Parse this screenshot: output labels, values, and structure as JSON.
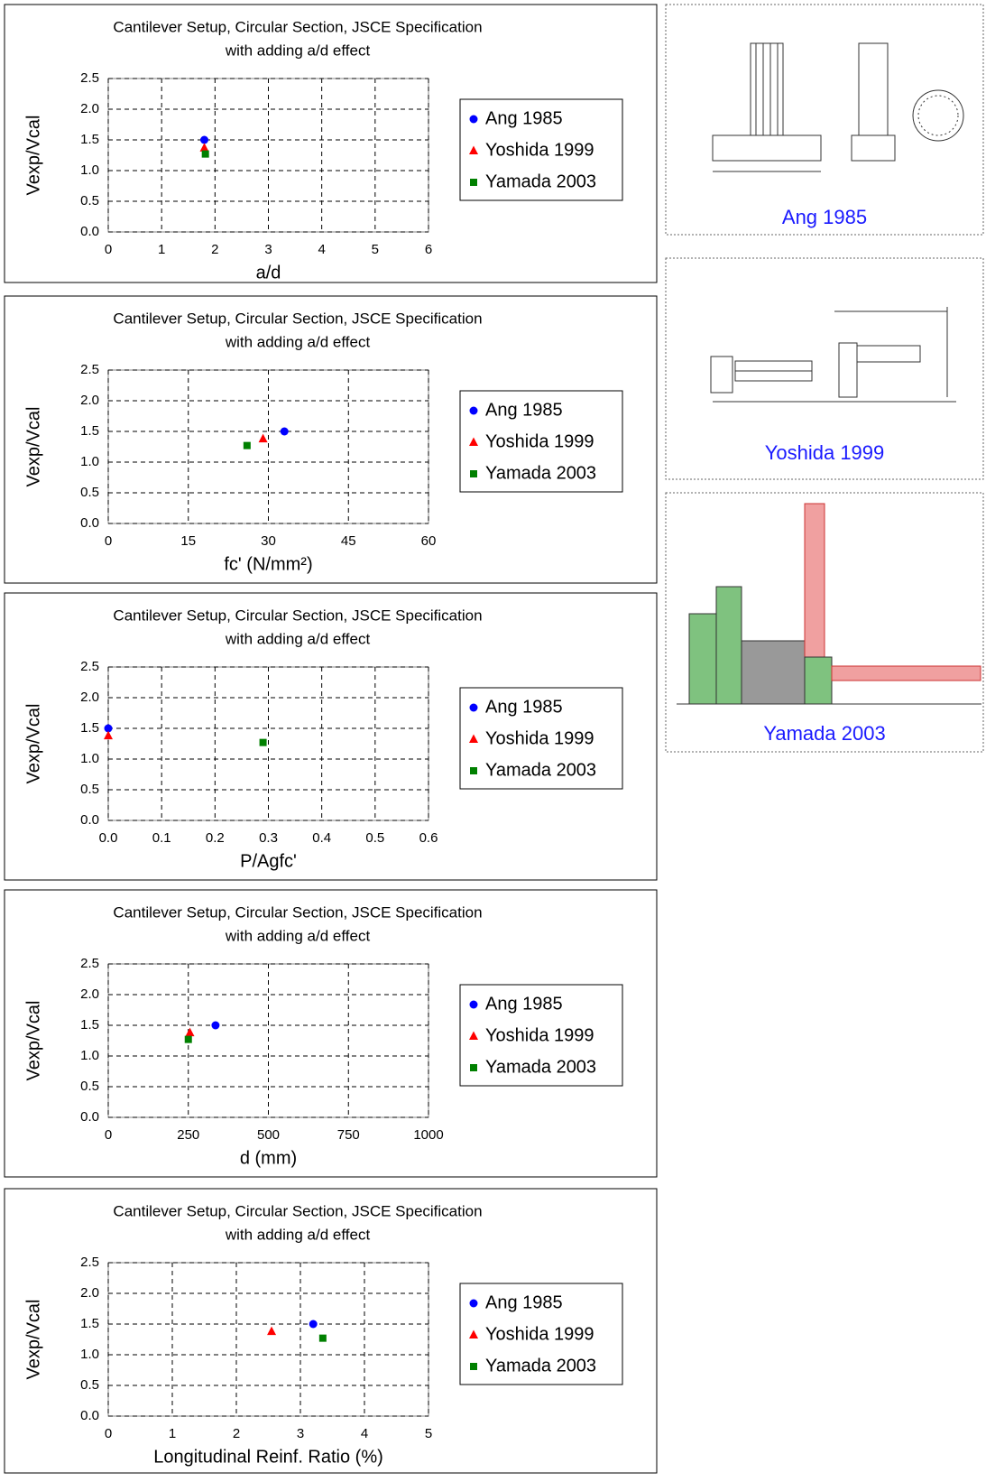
{
  "chart_data": [
    {
      "type": "scatter",
      "title": "Cantilever Setup, Circular Section, JSCE Specification",
      "subtitle": "with adding a/d effect",
      "x_label": "a/d",
      "y_label": "Vexp/Vcal",
      "xlim": [
        0,
        6
      ],
      "xticks": [
        0,
        1,
        2,
        3,
        4,
        5,
        6
      ],
      "ylim": [
        0,
        2.5
      ],
      "yticks": [
        {
          "value": 0,
          "label": "0.0"
        },
        0.5,
        {
          "value": 1,
          "label": "1.0"
        },
        1.5,
        {
          "value": 2,
          "label": "2.0"
        },
        2.5
      ],
      "grid": true,
      "legend": "right",
      "series": [
        {
          "name": "Ang 1985",
          "color": "#0000ff",
          "marker": "circle",
          "x": [
            1.8
          ],
          "values": [
            1.5
          ]
        },
        {
          "name": "Yoshida 1999",
          "color": "#ff0000",
          "marker": "triangle",
          "x": [
            1.8
          ],
          "values": [
            1.37
          ]
        },
        {
          "name": "Yamada 2003",
          "color": "#008000",
          "marker": "square",
          "x": [
            1.82
          ],
          "values": [
            1.27
          ]
        }
      ]
    },
    {
      "type": "scatter",
      "title": "Cantilever Setup, Circular Section, JSCE Specification",
      "subtitle": "with adding a/d effect",
      "x_label": "fc' (N/mm²)",
      "y_label": "Vexp/Vcal",
      "xlim": [
        0,
        60
      ],
      "xticks": [
        0,
        15,
        30,
        45,
        60
      ],
      "ylim": [
        0,
        2.5
      ],
      "yticks": [
        {
          "value": 0,
          "label": "0.0"
        },
        0.5,
        {
          "value": 1,
          "label": "1.0"
        },
        1.5,
        {
          "value": 2,
          "label": "2.0"
        },
        2.5
      ],
      "grid": true,
      "legend": "right",
      "series": [
        {
          "name": "Ang 1985",
          "color": "#0000ff",
          "marker": "circle",
          "x": [
            33
          ],
          "values": [
            1.5
          ]
        },
        {
          "name": "Yoshida 1999",
          "color": "#ff0000",
          "marker": "triangle",
          "x": [
            29
          ],
          "values": [
            1.38
          ]
        },
        {
          "name": "Yamada 2003",
          "color": "#008000",
          "marker": "square",
          "x": [
            26
          ],
          "values": [
            1.27
          ]
        }
      ]
    },
    {
      "type": "scatter",
      "title": "Cantilever Setup, Circular Section, JSCE Specification",
      "subtitle": "with adding a/d effect",
      "x_label": "P/Agfc'",
      "y_label": "Vexp/Vcal",
      "xlim": [
        0,
        0.6
      ],
      "xticks": [
        {
          "value": 0,
          "label": "0.0"
        },
        0.1,
        0.2,
        0.3,
        0.4,
        0.5,
        0.6
      ],
      "ylim": [
        0,
        2.5
      ],
      "yticks": [
        {
          "value": 0,
          "label": "0.0"
        },
        0.5,
        {
          "value": 1,
          "label": "1.0"
        },
        1.5,
        {
          "value": 2,
          "label": "2.0"
        },
        2.5
      ],
      "grid": true,
      "legend": "right",
      "series": [
        {
          "name": "Ang 1985",
          "color": "#0000ff",
          "marker": "circle",
          "x": [
            0.0
          ],
          "values": [
            1.5
          ]
        },
        {
          "name": "Yoshida 1999",
          "color": "#ff0000",
          "marker": "triangle",
          "x": [
            0.0
          ],
          "values": [
            1.38
          ]
        },
        {
          "name": "Yamada 2003",
          "color": "#008000",
          "marker": "square",
          "x": [
            0.29
          ],
          "values": [
            1.27
          ]
        }
      ]
    },
    {
      "type": "scatter",
      "title": "Cantilever Setup, Circular Section, JSCE Specification",
      "subtitle": "with adding a/d effect",
      "x_label": "d (mm)",
      "y_label": "Vexp/Vcal",
      "xlim": [
        0,
        1000
      ],
      "xticks": [
        0,
        250,
        500,
        750,
        1000
      ],
      "ylim": [
        0,
        2.5
      ],
      "yticks": [
        {
          "value": 0,
          "label": "0.0"
        },
        0.5,
        {
          "value": 1,
          "label": "1.0"
        },
        1.5,
        {
          "value": 2,
          "label": "2.0"
        },
        2.5
      ],
      "grid": true,
      "legend": "right",
      "series": [
        {
          "name": "Ang 1985",
          "color": "#0000ff",
          "marker": "circle",
          "x": [
            335
          ],
          "values": [
            1.5
          ]
        },
        {
          "name": "Yoshida 1999",
          "color": "#ff0000",
          "marker": "triangle",
          "x": [
            255
          ],
          "values": [
            1.38
          ]
        },
        {
          "name": "Yamada 2003",
          "color": "#008000",
          "marker": "square",
          "x": [
            250
          ],
          "values": [
            1.27
          ]
        }
      ]
    },
    {
      "type": "scatter",
      "title": "Cantilever Setup, Circular Section, JSCE Specification",
      "subtitle": "with adding a/d effect",
      "x_label": "Longitudinal Reinf. Ratio (%)",
      "y_label": "Vexp/Vcal",
      "xlim": [
        0,
        5
      ],
      "xticks": [
        0,
        1,
        2,
        3,
        4,
        5
      ],
      "ylim": [
        0,
        2.5
      ],
      "yticks": [
        {
          "value": 0,
          "label": "0.0"
        },
        0.5,
        {
          "value": 1,
          "label": "1.0"
        },
        1.5,
        {
          "value": 2,
          "label": "2.0"
        },
        2.5
      ],
      "grid": true,
      "legend": "right",
      "series": [
        {
          "name": "Ang 1985",
          "color": "#0000ff",
          "marker": "circle",
          "x": [
            3.2
          ],
          "values": [
            1.5
          ]
        },
        {
          "name": "Yoshida 1999",
          "color": "#ff0000",
          "marker": "triangle",
          "x": [
            2.55
          ],
          "values": [
            1.38
          ]
        },
        {
          "name": "Yamada 2003",
          "color": "#008000",
          "marker": "square",
          "x": [
            3.35
          ],
          "values": [
            1.27
          ]
        }
      ]
    }
  ],
  "figures": [
    {
      "caption": "Ang 1985"
    },
    {
      "caption": "Yoshida 1999"
    },
    {
      "caption": "Yamada 2003"
    }
  ]
}
